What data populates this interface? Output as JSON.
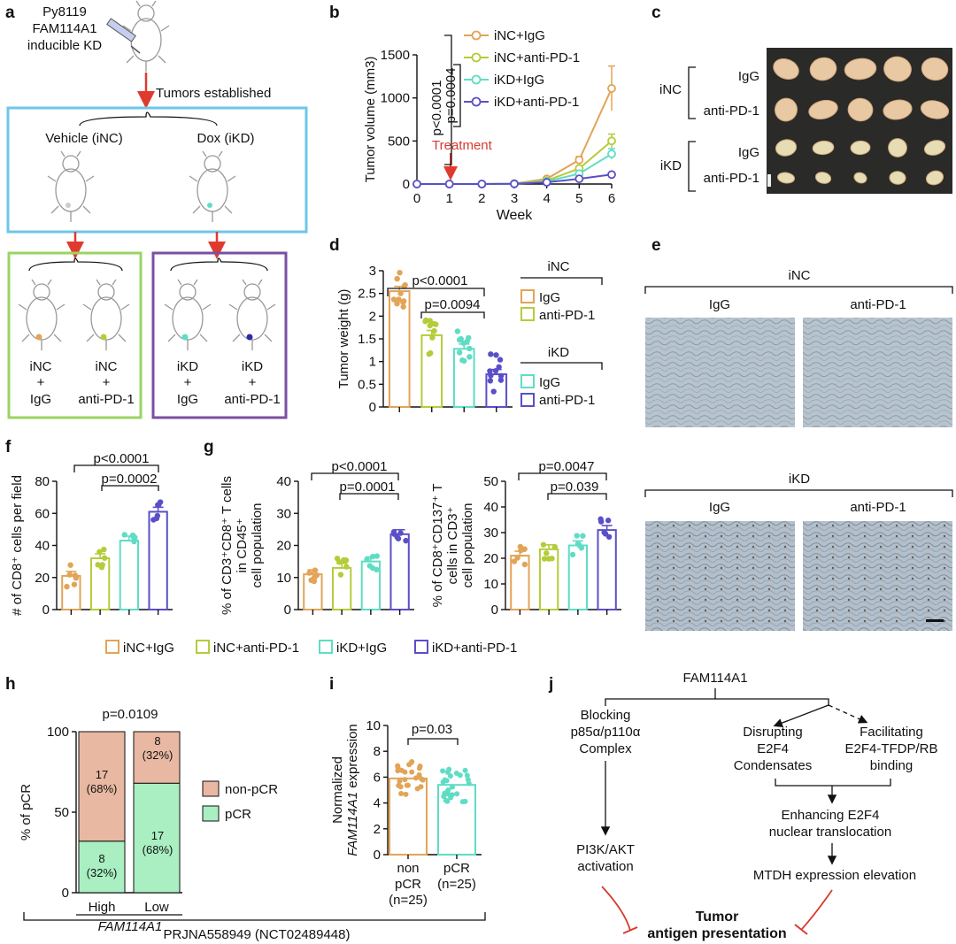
{
  "panels": {
    "a": {
      "letter": "a",
      "mouse_label": [
        "Py8119",
        "FAM114A1",
        "inducible KD"
      ],
      "established": "Tumors established",
      "vehicle": "Vehicle (iNC)",
      "dox": "Dox (iKD)",
      "groups": [
        {
          "line1": "iNC",
          "line2": "+",
          "line3": "IgG"
        },
        {
          "line1": "iNC",
          "line2": "+",
          "line3": "anti-PD-1"
        },
        {
          "line1": "iKD",
          "line2": "+",
          "line3": "IgG"
        },
        {
          "line1": "iKD",
          "line2": "+",
          "line3": "anti-PD-1"
        }
      ]
    },
    "b": {
      "letter": "b",
      "treatment": "Treatment",
      "p1": "p<0.0001",
      "p2": "p=0.0004"
    },
    "c": {
      "letter": "c",
      "rows": [
        "IgG",
        "anti-PD-1",
        "IgG",
        "anti-PD-1"
      ],
      "groups": [
        "iNC",
        "iKD"
      ]
    },
    "d": {
      "letter": "d",
      "p1": "p<0.0001",
      "p2": "p=0.0094",
      "legend_groups": [
        "iNC",
        "iKD"
      ],
      "legend_items": [
        "IgG",
        "anti-PD-1",
        "IgG",
        "anti-PD-1"
      ]
    },
    "e": {
      "letter": "e",
      "top_group": "iNC",
      "bottom_group": "iKD",
      "cols": [
        "IgG",
        "anti-PD-1"
      ]
    },
    "f": {
      "letter": "f",
      "p1": "p<0.0001",
      "p2": "p=0.0002"
    },
    "g": {
      "letter": "g",
      "p1": "p<0.0001",
      "p2": "p=0.0001",
      "p3": "p=0.0047",
      "p4": "p=0.039"
    },
    "legend": [
      "iNC+IgG",
      "iNC+anti-PD-1",
      "iKD+IgG",
      "iKD+anti-PD-1"
    ],
    "h": {
      "letter": "h",
      "p": "p=0.0109",
      "gene": "FAM114A1",
      "bar_labels": [
        {
          "top_n": "17",
          "top_pct": "(68%)",
          "bot_n": "8",
          "bot_pct": "(32%)"
        },
        {
          "top_n": "8",
          "top_pct": "(32%)",
          "bot_n": "17",
          "bot_pct": "(68%)"
        }
      ],
      "legend": [
        "non-pCR",
        "pCR"
      ],
      "study": "PRJNA558949 (NCT02489448)"
    },
    "i": {
      "letter": "i",
      "p": "p=0.03",
      "x1": [
        "non",
        "pCR",
        "(n=25)"
      ],
      "x2": [
        "pCR",
        "(n=25)"
      ]
    },
    "j": {
      "letter": "j",
      "top": "FAM114A1",
      "block": [
        "Blocking",
        "p85α/p110α",
        "Complex"
      ],
      "disrupt": [
        "Disrupting",
        "E2F4",
        "Condensates"
      ],
      "facil": [
        "Facilitating",
        "E2F4-TFDP/RB",
        "binding"
      ],
      "pi3k": [
        "PI3K/AKT",
        "activation"
      ],
      "enh": [
        "Enhancing E2F4",
        "nuclear translocation"
      ],
      "mtdh": "MTDH expression elevation",
      "final": [
        "Tumor",
        "antigen presentation"
      ]
    }
  },
  "colors": {
    "inc_igg": "#E2A457",
    "inc_pd1": "#B5CC3A",
    "ikd_igg": "#5FDDC4",
    "ikd_pd1": "#5A4FC8",
    "nonpcr": "#E8B8A2",
    "pcr": "#A9EFC2",
    "box_blue": "#6EC6E8",
    "box_green": "#9BD462",
    "box_purple": "#7A4FA3",
    "arrow_red": "#E03A2F"
  },
  "chart_data": [
    {
      "id": "b",
      "type": "line",
      "title": "",
      "xlabel": "Week",
      "ylabel": "Tumor volume (mm3)",
      "x": [
        0,
        1,
        2,
        3,
        4,
        5,
        6
      ],
      "xlim": [
        0,
        6
      ],
      "ylim": [
        0,
        1500
      ],
      "yticks": [
        0,
        500,
        1000,
        1500
      ],
      "series": [
        {
          "name": "iNC+IgG",
          "values": [
            0,
            0,
            0,
            5,
            60,
            280,
            1110
          ],
          "err": [
            0,
            0,
            0,
            5,
            15,
            40,
            260
          ]
        },
        {
          "name": "iNC+anti-PD-1",
          "values": [
            0,
            0,
            0,
            3,
            40,
            180,
            500
          ],
          "err": [
            0,
            0,
            0,
            3,
            10,
            30,
            80
          ]
        },
        {
          "name": "iKD+IgG",
          "values": [
            0,
            0,
            0,
            3,
            30,
            120,
            350
          ],
          "err": [
            0,
            0,
            0,
            3,
            8,
            20,
            60
          ]
        },
        {
          "name": "iKD+anti-PD-1",
          "values": [
            0,
            0,
            0,
            2,
            20,
            60,
            110
          ],
          "err": [
            0,
            0,
            0,
            2,
            5,
            10,
            20
          ]
        }
      ]
    },
    {
      "id": "d",
      "type": "bar",
      "ylabel": "Tumor weight (g)",
      "ylim": [
        0,
        3
      ],
      "yticks": [
        0,
        0.5,
        1,
        1.5,
        2,
        2.5,
        3
      ],
      "categories": [
        "iNC+IgG",
        "iNC+anti-PD-1",
        "iKD+IgG",
        "iKD+anti-PD-1"
      ],
      "values": [
        2.55,
        1.58,
        1.28,
        0.72
      ]
    },
    {
      "id": "f",
      "type": "bar",
      "ylabel": "# of CD8+ cells per field",
      "ylim": [
        0,
        80
      ],
      "yticks": [
        0,
        20,
        40,
        60,
        80
      ],
      "categories": [
        "iNC+IgG",
        "iNC+anti-PD-1",
        "iKD+IgG",
        "iKD+anti-PD-1"
      ],
      "values": [
        21,
        32,
        43,
        61
      ]
    },
    {
      "id": "g1",
      "type": "bar",
      "ylabel": "% of CD3+CD8+ T cells in CD45+ cell population",
      "ylim": [
        0,
        40
      ],
      "yticks": [
        0,
        10,
        20,
        30,
        40
      ],
      "categories": [
        "iNC+IgG",
        "iNC+anti-PD-1",
        "iKD+IgG",
        "iKD+anti-PD-1"
      ],
      "values": [
        11,
        13,
        15,
        23.5
      ]
    },
    {
      "id": "g2",
      "type": "bar",
      "ylabel": "% of CD8+CD137+ T cells in CD3+ cell population",
      "ylim": [
        0,
        50
      ],
      "yticks": [
        0,
        10,
        20,
        30,
        40,
        50
      ],
      "categories": [
        "iNC+IgG",
        "iNC+anti-PD-1",
        "iKD+IgG",
        "iKD+anti-PD-1"
      ],
      "values": [
        21,
        23.5,
        25,
        31
      ]
    },
    {
      "id": "h",
      "type": "bar",
      "ylabel": "% of pCR",
      "ylim": [
        0,
        100
      ],
      "yticks": [
        0,
        50,
        100
      ],
      "categories": [
        "High",
        "Low"
      ],
      "series": [
        {
          "name": "pCR",
          "values": [
            32,
            68
          ]
        },
        {
          "name": "non-pCR",
          "values": [
            68,
            32
          ]
        }
      ]
    },
    {
      "id": "i",
      "type": "bar",
      "ylabel": "Normalized FAM114A1 expression",
      "ylim": [
        0,
        10
      ],
      "yticks": [
        0,
        2,
        4,
        6,
        8,
        10
      ],
      "categories": [
        "non pCR (n=25)",
        "pCR (n=25)"
      ],
      "values": [
        5.9,
        5.4
      ]
    }
  ]
}
